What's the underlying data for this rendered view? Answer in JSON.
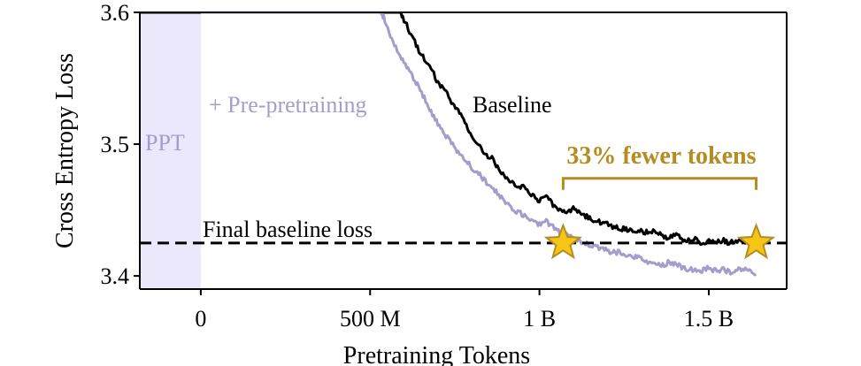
{
  "chart_data": {
    "type": "line",
    "title": "",
    "xlabel": "Pretraining Tokens",
    "ylabel": "Cross Entropy Loss",
    "xlim": [
      -180000000,
      1730000000
    ],
    "ylim": [
      3.39,
      3.6
    ],
    "x_ticks": [
      0,
      500000000,
      1000000000,
      1500000000
    ],
    "x_tick_labels": [
      "0",
      "500 M",
      "1 B",
      "1.5 B"
    ],
    "y_ticks": [
      3.4,
      3.5,
      3.6
    ],
    "y_tick_labels": [
      "3.4",
      "3.5",
      "3.6"
    ],
    "grid": false,
    "colors": {
      "baseline": "#000000",
      "pre_pretraining": "#a69ccc",
      "ppt_region": "#ece8fb",
      "highlight": "#b58c20",
      "star_fill": "#f5c518"
    },
    "ppt_region": {
      "x_start": -180000000,
      "x_end": 0,
      "label": "PPT"
    },
    "final_baseline_loss": {
      "y": 3.425,
      "label": "Final baseline loss"
    },
    "series": [
      {
        "name": "Baseline",
        "color": "#000000",
        "x": [
          -180000000,
          590000000,
          600000000,
          620000000,
          640000000,
          660000000,
          680000000,
          700000000,
          720000000,
          740000000,
          760000000,
          780000000,
          800000000,
          820000000,
          840000000,
          860000000,
          880000000,
          900000000,
          920000000,
          940000000,
          960000000,
          980000000,
          1000000000,
          1020000000,
          1040000000,
          1060000000,
          1080000000,
          1100000000,
          1120000000,
          1140000000,
          1160000000,
          1180000000,
          1200000000,
          1220000000,
          1240000000,
          1260000000,
          1280000000,
          1300000000,
          1320000000,
          1340000000,
          1360000000,
          1380000000,
          1400000000,
          1420000000,
          1440000000,
          1460000000,
          1480000000,
          1500000000,
          1520000000,
          1540000000,
          1560000000,
          1580000000,
          1600000000,
          1620000000,
          1640000000
        ],
        "values": [
          3.6,
          3.6,
          3.594,
          3.584,
          3.573,
          3.565,
          3.557,
          3.547,
          3.541,
          3.532,
          3.525,
          3.516,
          3.507,
          3.5,
          3.493,
          3.489,
          3.481,
          3.475,
          3.471,
          3.467,
          3.467,
          3.461,
          3.457,
          3.461,
          3.454,
          3.451,
          3.449,
          3.451,
          3.447,
          3.445,
          3.442,
          3.441,
          3.439,
          3.437,
          3.436,
          3.435,
          3.434,
          3.434,
          3.433,
          3.434,
          3.431,
          3.428,
          3.431,
          3.428,
          3.427,
          3.428,
          3.425,
          3.427,
          3.426,
          3.427,
          3.425,
          3.426,
          3.427,
          3.425,
          3.425
        ]
      },
      {
        "name": "+ Pre-pretraining",
        "color": "#a69ccc",
        "x": [
          0,
          530000000,
          540000000,
          560000000,
          580000000,
          600000000,
          620000000,
          640000000,
          660000000,
          680000000,
          700000000,
          720000000,
          740000000,
          760000000,
          780000000,
          800000000,
          820000000,
          840000000,
          860000000,
          880000000,
          900000000,
          920000000,
          940000000,
          960000000,
          980000000,
          1000000000,
          1020000000,
          1040000000,
          1060000000,
          1080000000,
          1100000000,
          1120000000,
          1140000000,
          1160000000,
          1180000000,
          1200000000,
          1220000000,
          1240000000,
          1260000000,
          1280000000,
          1300000000,
          1320000000,
          1340000000,
          1360000000,
          1380000000,
          1400000000,
          1420000000,
          1440000000,
          1460000000,
          1480000000,
          1500000000,
          1520000000,
          1540000000,
          1560000000,
          1580000000,
          1600000000,
          1620000000,
          1640000000
        ],
        "values": [
          3.6,
          3.6,
          3.596,
          3.582,
          3.572,
          3.562,
          3.553,
          3.545,
          3.535,
          3.524,
          3.516,
          3.507,
          3.502,
          3.494,
          3.489,
          3.482,
          3.478,
          3.472,
          3.466,
          3.462,
          3.456,
          3.451,
          3.448,
          3.445,
          3.443,
          3.439,
          3.441,
          3.437,
          3.433,
          3.431,
          3.429,
          3.426,
          3.424,
          3.422,
          3.421,
          3.419,
          3.418,
          3.418,
          3.415,
          3.415,
          3.414,
          3.411,
          3.409,
          3.408,
          3.41,
          3.41,
          3.406,
          3.405,
          3.405,
          3.404,
          3.406,
          3.404,
          3.405,
          3.403,
          3.404,
          3.405,
          3.403,
          3.401
        ]
      }
    ],
    "annotations": {
      "baseline_label": "Baseline",
      "ppt_series_label": "+ Pre-pretraining",
      "savings_label": "33% fewer tokens",
      "savings_bracket": {
        "x_start": 1070000000,
        "x_end": 1640000000,
        "y": 3.474
      },
      "stars": [
        {
          "x": 1070000000,
          "y": 3.425
        },
        {
          "x": 1640000000,
          "y": 3.425
        }
      ]
    }
  }
}
